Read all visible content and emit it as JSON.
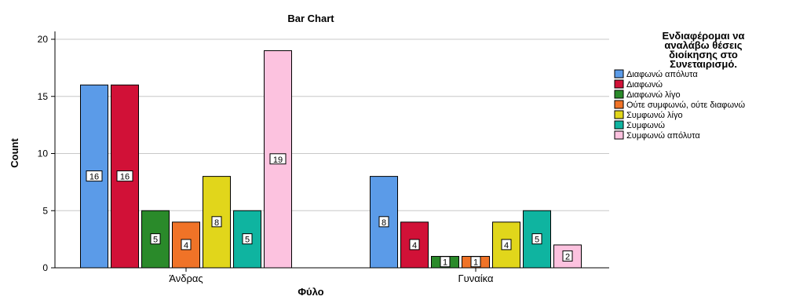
{
  "chart_data": {
    "type": "bar",
    "title": "Bar Chart",
    "xlabel": "Φύλο",
    "ylabel": "Count",
    "ylim": [
      0,
      20
    ],
    "yticks": [
      0,
      5,
      10,
      15,
      20
    ],
    "grid": true,
    "legend_position": "right",
    "legend_title": [
      "Ενδιαφέρομαι να",
      "αναλάβω θέσεις",
      "διοίκησης στο",
      "Συνεταιρισμό."
    ],
    "categories": [
      "Άνδρας",
      "Γυναίκα"
    ],
    "series": [
      {
        "name": "Διαφωνώ απόλυτα",
        "color": "#5b9be8",
        "values": [
          16,
          8
        ]
      },
      {
        "name": "Διαφωνώ",
        "color": "#d11137",
        "values": [
          16,
          4
        ]
      },
      {
        "name": "Διαφωνώ λίγο",
        "color": "#2a8a2a",
        "values": [
          5,
          1
        ]
      },
      {
        "name": "Ούτε συμφωνώ, ούτε διαφωνώ",
        "color": "#f07327",
        "values": [
          4,
          1
        ]
      },
      {
        "name": "Συμφωνώ λίγο",
        "color": "#e1d61b",
        "values": [
          8,
          4
        ]
      },
      {
        "name": "Συμφωνώ",
        "color": "#0fb4a0",
        "values": [
          5,
          5
        ]
      },
      {
        "name": "Συμφωνώ απόλυτα",
        "color": "#fcc2df",
        "values": [
          19,
          2
        ]
      }
    ]
  }
}
